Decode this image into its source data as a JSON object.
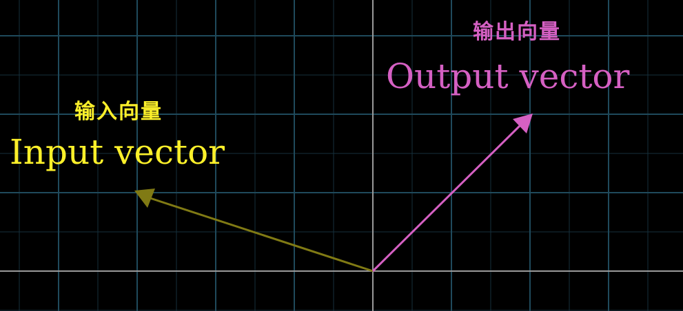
{
  "plane": {
    "background": "#000000",
    "grid_color": "#1f4a5c",
    "minor_grid_color": "#16303c",
    "axis_color": "#9a9a9a"
  },
  "vectors": {
    "input": {
      "label_cn": "输入向量",
      "label_en": "Input vector",
      "color": "#fcf02a",
      "arrow_color": "#807a14"
    },
    "output": {
      "label_cn": "输出向量",
      "label_en": "Output vector",
      "color": "#d560c3",
      "arrow_color": "#d560c3"
    }
  }
}
